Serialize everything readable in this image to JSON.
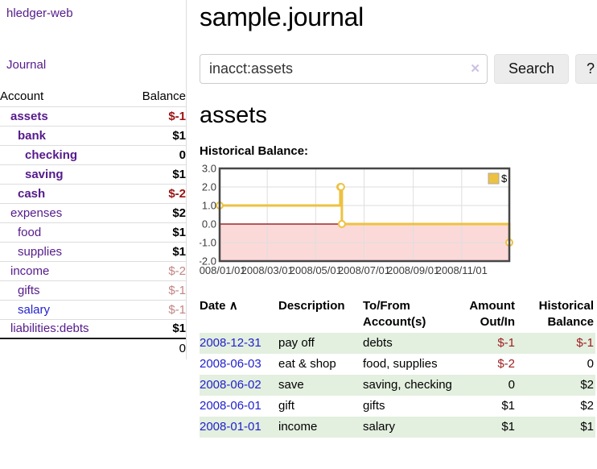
{
  "colors": {
    "link_purple": "#551a8b",
    "link_blue": "#2222cc",
    "negative_strong": "#9b1212",
    "negative_soft": "#c38484",
    "row_green": "#e3efdf",
    "chart_line_gold": "#edc240"
  },
  "sidebar": {
    "brand": "hledger-web",
    "nav": {
      "journal_label": "Journal"
    },
    "accounts_table": {
      "headers": {
        "account": "Account",
        "balance": "Balance"
      },
      "rows": [
        {
          "name": "assets",
          "balance": "$-1",
          "depth": 1,
          "bold": true,
          "name_style": "purple",
          "balance_style": "neg-strong"
        },
        {
          "name": "bank",
          "balance": "$1",
          "depth": 2,
          "bold": true,
          "name_style": "purple",
          "balance_style": "pos"
        },
        {
          "name": "checking",
          "balance": "0",
          "depth": 3,
          "bold": true,
          "name_style": "purple",
          "balance_style": "pos"
        },
        {
          "name": "saving",
          "balance": "$1",
          "depth": 3,
          "bold": true,
          "name_style": "purple",
          "balance_style": "pos"
        },
        {
          "name": "cash",
          "balance": "$-2",
          "depth": 2,
          "bold": true,
          "name_style": "purple",
          "balance_style": "neg-strong"
        },
        {
          "name": "expenses",
          "balance": "$2",
          "depth": 1,
          "bold": false,
          "name_style": "purple",
          "balance_style": "pos"
        },
        {
          "name": "food",
          "balance": "$1",
          "depth": 2,
          "bold": false,
          "name_style": "purple",
          "balance_style": "pos"
        },
        {
          "name": "supplies",
          "balance": "$1",
          "depth": 2,
          "bold": false,
          "name_style": "purple",
          "balance_style": "pos"
        },
        {
          "name": "income",
          "balance": "$-2",
          "depth": 1,
          "bold": false,
          "name_style": "purple",
          "balance_style": "neg-soft"
        },
        {
          "name": "gifts",
          "balance": "$-1",
          "depth": 2,
          "bold": false,
          "name_style": "purple",
          "balance_style": "neg-soft"
        },
        {
          "name": "salary",
          "balance": "$-1",
          "depth": 2,
          "bold": false,
          "name_style": "blue",
          "balance_style": "neg-soft"
        },
        {
          "name": "liabilities:debts",
          "balance": "$1",
          "depth": 1,
          "bold": false,
          "name_style": "purple",
          "balance_style": "pos"
        }
      ],
      "total": "0"
    }
  },
  "main": {
    "title": "sample.journal",
    "search": {
      "value": "inacct:assets",
      "clear_icon": "✕",
      "button_label": "Search",
      "help_label": "?"
    },
    "account_heading": "assets",
    "chart_label": "Historical Balance:"
  },
  "chart_data": {
    "type": "line",
    "step": true,
    "title": "Historical Balance",
    "series": [
      {
        "name": "$",
        "color": "#edc240",
        "points": [
          [
            "2008-01-01",
            1
          ],
          [
            "2008-06-01",
            2
          ],
          [
            "2008-06-02",
            2
          ],
          [
            "2008-06-03",
            0
          ],
          [
            "2008-12-31",
            -1
          ]
        ]
      }
    ],
    "x_range": [
      "2008-01-01",
      "2008-12-31"
    ],
    "x_ticks": [
      [
        "2008-01-01",
        "2008/01/01"
      ],
      [
        "2008-03-01",
        "2008/03/01"
      ],
      [
        "2008-05-01",
        "2008/05/01"
      ],
      [
        "2008-07-01",
        "2008/07/01"
      ],
      [
        "2008-09-01",
        "2008/09/01"
      ],
      [
        "2008-11-01",
        "2008/11/01"
      ]
    ],
    "y_ticks": [
      "3.0",
      "2.0",
      "1.0",
      "0.0",
      "-1.0",
      "-2.0"
    ],
    "ylim": [
      -2,
      3
    ],
    "grid": true,
    "legend": {
      "label": "$",
      "position": "top-right"
    },
    "negative_fill": "#fbd9d9",
    "zero_line_color": "#8b0000"
  },
  "transactions": {
    "headers": {
      "date": "Date",
      "sort_arrow": "∧",
      "description": "Description",
      "tofrom": "To/From Account(s)",
      "amount": "Amount Out/In",
      "balance": "Historical Balance"
    },
    "rows": [
      {
        "date": "2008-12-31",
        "description": "pay off",
        "accounts": "debts",
        "amount": "$-1",
        "balance": "$-1",
        "amount_neg": true,
        "balance_neg": true
      },
      {
        "date": "2008-06-03",
        "description": "eat & shop",
        "accounts": "food, supplies",
        "amount": "$-2",
        "balance": "0",
        "amount_neg": true,
        "balance_neg": false
      },
      {
        "date": "2008-06-02",
        "description": "save",
        "accounts": "saving, checking",
        "amount": "0",
        "balance": "$2",
        "amount_neg": false,
        "balance_neg": false
      },
      {
        "date": "2008-06-01",
        "description": "gift",
        "accounts": "gifts",
        "amount": "$1",
        "balance": "$2",
        "amount_neg": false,
        "balance_neg": false
      },
      {
        "date": "2008-01-01",
        "description": "income",
        "accounts": "salary",
        "amount": "$1",
        "balance": "$1",
        "amount_neg": false,
        "balance_neg": false
      }
    ]
  }
}
